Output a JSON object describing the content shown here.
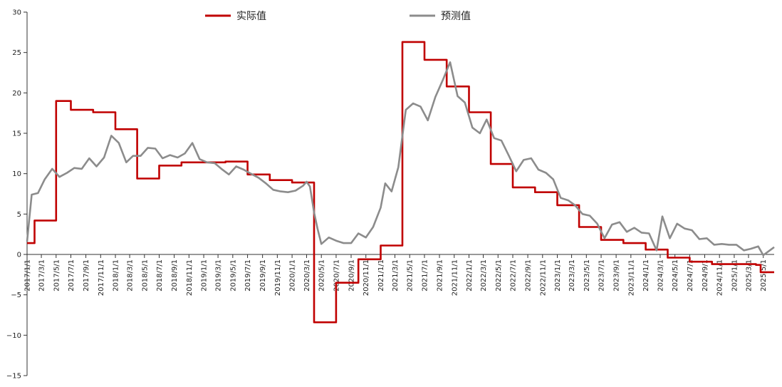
{
  "chart_data": {
    "type": "line",
    "x_ticks": [
      "2017/1/1",
      "2017/3/1",
      "2017/5/1",
      "2017/7/1",
      "2017/9/1",
      "2017/11/1",
      "2018/1/1",
      "2018/3/1",
      "2018/5/1",
      "2018/7/1",
      "2018/9/1",
      "2018/11/1",
      "2019/1/1",
      "2019/3/1",
      "2019/5/1",
      "2019/7/1",
      "2019/9/1",
      "2019/11/1",
      "2020/1/1",
      "2020/3/1",
      "2020/5/1",
      "2020/7/1",
      "2020/9/1",
      "2020/11/1",
      "2021/1/1",
      "2021/3/1",
      "2021/5/1",
      "2021/7/1",
      "2021/9/1",
      "2021/11/1",
      "2022/1/1",
      "2022/3/1",
      "2022/5/1",
      "2022/7/1",
      "2022/9/1",
      "2022/11/1",
      "2023/1/1",
      "2023/3/1",
      "2023/5/1",
      "2023/7/1",
      "2023/9/1",
      "2023/11/1",
      "2024/1/1",
      "2024/3/1",
      "2024/5/1",
      "2024/7/1",
      "2024/9/1",
      "2024/11/1",
      "2025/1/1",
      "2025/3/1",
      "2025/5/1"
    ],
    "y_ticks": [
      "30",
      "25",
      "20",
      "15",
      "10",
      "5",
      "0",
      "−5",
      "−10",
      "−15"
    ],
    "ylim": [
      -15,
      30
    ],
    "x_range": [
      "2017/1/1",
      "2025/6/15"
    ],
    "legend_position": "top-center",
    "series": [
      {
        "name": "实际值",
        "color": "#c00000",
        "step": true,
        "points": [
          [
            "2017/1/1",
            1.4
          ],
          [
            "2017/2/1",
            4.2
          ],
          [
            "2017/5/1",
            19.0
          ],
          [
            "2017/7/1",
            17.9
          ],
          [
            "2017/10/1",
            17.6
          ],
          [
            "2018/1/1",
            15.5
          ],
          [
            "2018/4/1",
            9.4
          ],
          [
            "2018/7/1",
            11.0
          ],
          [
            "2018/10/1",
            11.4
          ],
          [
            "2019/4/1",
            11.5
          ],
          [
            "2019/7/1",
            9.9
          ],
          [
            "2019/10/1",
            9.2
          ],
          [
            "2020/1/1",
            8.9
          ],
          [
            "2020/4/1",
            -8.4
          ],
          [
            "2020/7/1",
            -3.5
          ],
          [
            "2020/10/1",
            -0.6
          ],
          [
            "2021/1/1",
            1.1
          ],
          [
            "2021/4/1",
            26.3
          ],
          [
            "2021/7/1",
            24.1
          ],
          [
            "2021/10/1",
            20.8
          ],
          [
            "2022/1/1",
            17.6
          ],
          [
            "2022/4/1",
            11.2
          ],
          [
            "2022/7/1",
            8.3
          ],
          [
            "2022/10/1",
            7.7
          ],
          [
            "2023/1/1",
            6.1
          ],
          [
            "2023/4/1",
            3.4
          ],
          [
            "2023/7/1",
            1.8
          ],
          [
            "2023/10/1",
            1.4
          ],
          [
            "2024/1/1",
            0.6
          ],
          [
            "2024/4/1",
            -0.4
          ],
          [
            "2024/7/1",
            -0.9
          ],
          [
            "2024/10/1",
            -1.2
          ],
          [
            "2025/4/1",
            -1.3
          ],
          [
            "2025/4/20",
            -2.2
          ],
          [
            "2025/6/15",
            -2.2
          ]
        ]
      },
      {
        "name": "预测值",
        "color": "#8c8c8c",
        "step": false,
        "points": [
          [
            "2017/1/1",
            1.6
          ],
          [
            "2017/1/20",
            7.4
          ],
          [
            "2017/2/15",
            7.6
          ],
          [
            "2017/3/15",
            9.3
          ],
          [
            "2017/4/15",
            10.6
          ],
          [
            "2017/5/15",
            9.6
          ],
          [
            "2017/6/15",
            10.1
          ],
          [
            "2017/7/15",
            10.7
          ],
          [
            "2017/8/15",
            10.6
          ],
          [
            "2017/9/15",
            11.9
          ],
          [
            "2017/10/15",
            10.9
          ],
          [
            "2017/11/15",
            12.0
          ],
          [
            "2017/12/15",
            14.7
          ],
          [
            "2018/1/15",
            13.8
          ],
          [
            "2018/2/15",
            11.4
          ],
          [
            "2018/3/15",
            12.2
          ],
          [
            "2018/4/15",
            12.2
          ],
          [
            "2018/5/15",
            13.2
          ],
          [
            "2018/6/15",
            13.1
          ],
          [
            "2018/7/15",
            11.9
          ],
          [
            "2018/8/15",
            12.3
          ],
          [
            "2018/9/15",
            12.0
          ],
          [
            "2018/10/15",
            12.5
          ],
          [
            "2018/11/15",
            13.8
          ],
          [
            "2018/12/15",
            11.8
          ],
          [
            "2019/1/15",
            11.4
          ],
          [
            "2019/2/15",
            11.3
          ],
          [
            "2019/3/15",
            10.6
          ],
          [
            "2019/4/15",
            9.9
          ],
          [
            "2019/5/15",
            10.9
          ],
          [
            "2019/6/15",
            10.5
          ],
          [
            "2019/7/15",
            10.0
          ],
          [
            "2019/8/15",
            9.5
          ],
          [
            "2019/9/15",
            8.8
          ],
          [
            "2019/10/15",
            8.0
          ],
          [
            "2019/11/15",
            7.8
          ],
          [
            "2019/12/15",
            7.7
          ],
          [
            "2020/1/15",
            7.9
          ],
          [
            "2020/2/15",
            8.5
          ],
          [
            "2020/3/1",
            9.0
          ],
          [
            "2020/3/15",
            8.4
          ],
          [
            "2020/4/1",
            5.2
          ],
          [
            "2020/4/15",
            3.2
          ],
          [
            "2020/5/1",
            1.3
          ],
          [
            "2020/6/1",
            2.1
          ],
          [
            "2020/7/1",
            1.7
          ],
          [
            "2020/8/1",
            1.4
          ],
          [
            "2020/9/1",
            1.4
          ],
          [
            "2020/10/1",
            2.6
          ],
          [
            "2020/11/1",
            2.1
          ],
          [
            "2020/12/1",
            3.4
          ],
          [
            "2021/1/1",
            5.8
          ],
          [
            "2021/1/20",
            8.8
          ],
          [
            "2021/2/15",
            7.8
          ],
          [
            "2021/3/15",
            10.8
          ],
          [
            "2021/4/15",
            17.9
          ],
          [
            "2021/5/15",
            18.7
          ],
          [
            "2021/6/15",
            18.3
          ],
          [
            "2021/7/15",
            16.6
          ],
          [
            "2021/8/15",
            19.5
          ],
          [
            "2021/9/15",
            21.6
          ],
          [
            "2021/10/15",
            23.8
          ],
          [
            "2021/11/15",
            19.6
          ],
          [
            "2021/12/15",
            18.8
          ],
          [
            "2022/1/15",
            15.7
          ],
          [
            "2022/2/15",
            15.0
          ],
          [
            "2022/3/15",
            16.7
          ],
          [
            "2022/4/15",
            14.4
          ],
          [
            "2022/5/15",
            14.1
          ],
          [
            "2022/6/15",
            12.2
          ],
          [
            "2022/7/15",
            10.3
          ],
          [
            "2022/8/15",
            11.7
          ],
          [
            "2022/9/15",
            11.9
          ],
          [
            "2022/10/15",
            10.5
          ],
          [
            "2022/11/15",
            10.1
          ],
          [
            "2022/12/15",
            9.3
          ],
          [
            "2023/1/15",
            7.0
          ],
          [
            "2023/2/15",
            6.7
          ],
          [
            "2023/3/15",
            6.1
          ],
          [
            "2023/4/15",
            5.0
          ],
          [
            "2023/5/15",
            4.8
          ],
          [
            "2023/6/15",
            3.8
          ],
          [
            "2023/7/15",
            2.0
          ],
          [
            "2023/8/15",
            3.7
          ],
          [
            "2023/9/15",
            4.0
          ],
          [
            "2023/10/15",
            2.8
          ],
          [
            "2023/11/15",
            3.3
          ],
          [
            "2023/12/15",
            2.7
          ],
          [
            "2024/1/15",
            2.6
          ],
          [
            "2024/2/15",
            0.5
          ],
          [
            "2024/3/10",
            4.7
          ],
          [
            "2024/4/10",
            2.0
          ],
          [
            "2024/5/10",
            3.8
          ],
          [
            "2024/6/10",
            3.2
          ],
          [
            "2024/7/10",
            3.0
          ],
          [
            "2024/8/10",
            1.9
          ],
          [
            "2024/9/10",
            2.0
          ],
          [
            "2024/10/10",
            1.2
          ],
          [
            "2024/11/10",
            1.3
          ],
          [
            "2024/12/10",
            1.2
          ],
          [
            "2025/1/10",
            1.2
          ],
          [
            "2025/2/10",
            0.5
          ],
          [
            "2025/3/10",
            0.7
          ],
          [
            "2025/4/10",
            1.0
          ],
          [
            "2025/5/1",
            -0.1
          ],
          [
            "2025/6/15",
            0.9
          ]
        ]
      }
    ]
  }
}
